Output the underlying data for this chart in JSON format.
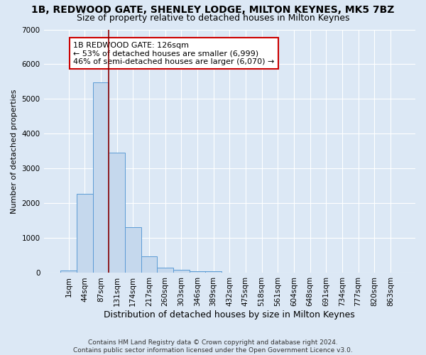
{
  "title": "1B, REDWOOD GATE, SHENLEY LODGE, MILTON KEYNES, MK5 7BZ",
  "subtitle": "Size of property relative to detached houses in Milton Keynes",
  "xlabel": "Distribution of detached houses by size in Milton Keynes",
  "ylabel": "Number of detached properties",
  "footnote1": "Contains HM Land Registry data © Crown copyright and database right 2024.",
  "footnote2": "Contains public sector information licensed under the Open Government Licence v3.0.",
  "bar_labels": [
    "1sqm",
    "44sqm",
    "87sqm",
    "131sqm",
    "174sqm",
    "217sqm",
    "260sqm",
    "303sqm",
    "346sqm",
    "389sqm",
    "432sqm",
    "475sqm",
    "518sqm",
    "561sqm",
    "604sqm",
    "648sqm",
    "691sqm",
    "734sqm",
    "777sqm",
    "820sqm",
    "863sqm"
  ],
  "bar_values": [
    80,
    2280,
    5480,
    3450,
    1310,
    470,
    150,
    100,
    60,
    45,
    0,
    0,
    0,
    0,
    0,
    0,
    0,
    0,
    0,
    0,
    0
  ],
  "bar_color": "#c5d8ed",
  "bar_edgecolor": "#5b9bd5",
  "ylim": [
    0,
    7000
  ],
  "yticks": [
    0,
    1000,
    2000,
    3000,
    4000,
    5000,
    6000,
    7000
  ],
  "property_bar_index": 2,
  "vline_color": "#8b0000",
  "annotation_text": "1B REDWOOD GATE: 126sqm\n← 53% of detached houses are smaller (6,999)\n46% of semi-detached houses are larger (6,070) →",
  "annotation_box_color": "#ffffff",
  "annotation_box_edgecolor": "#cc0000",
  "background_color": "#dce8f5",
  "grid_color": "#ffffff",
  "title_fontsize": 10,
  "subtitle_fontsize": 9,
  "xlabel_fontsize": 9,
  "ylabel_fontsize": 8,
  "annot_fontsize": 8,
  "tick_fontsize": 7.5,
  "footnote_fontsize": 6.5
}
